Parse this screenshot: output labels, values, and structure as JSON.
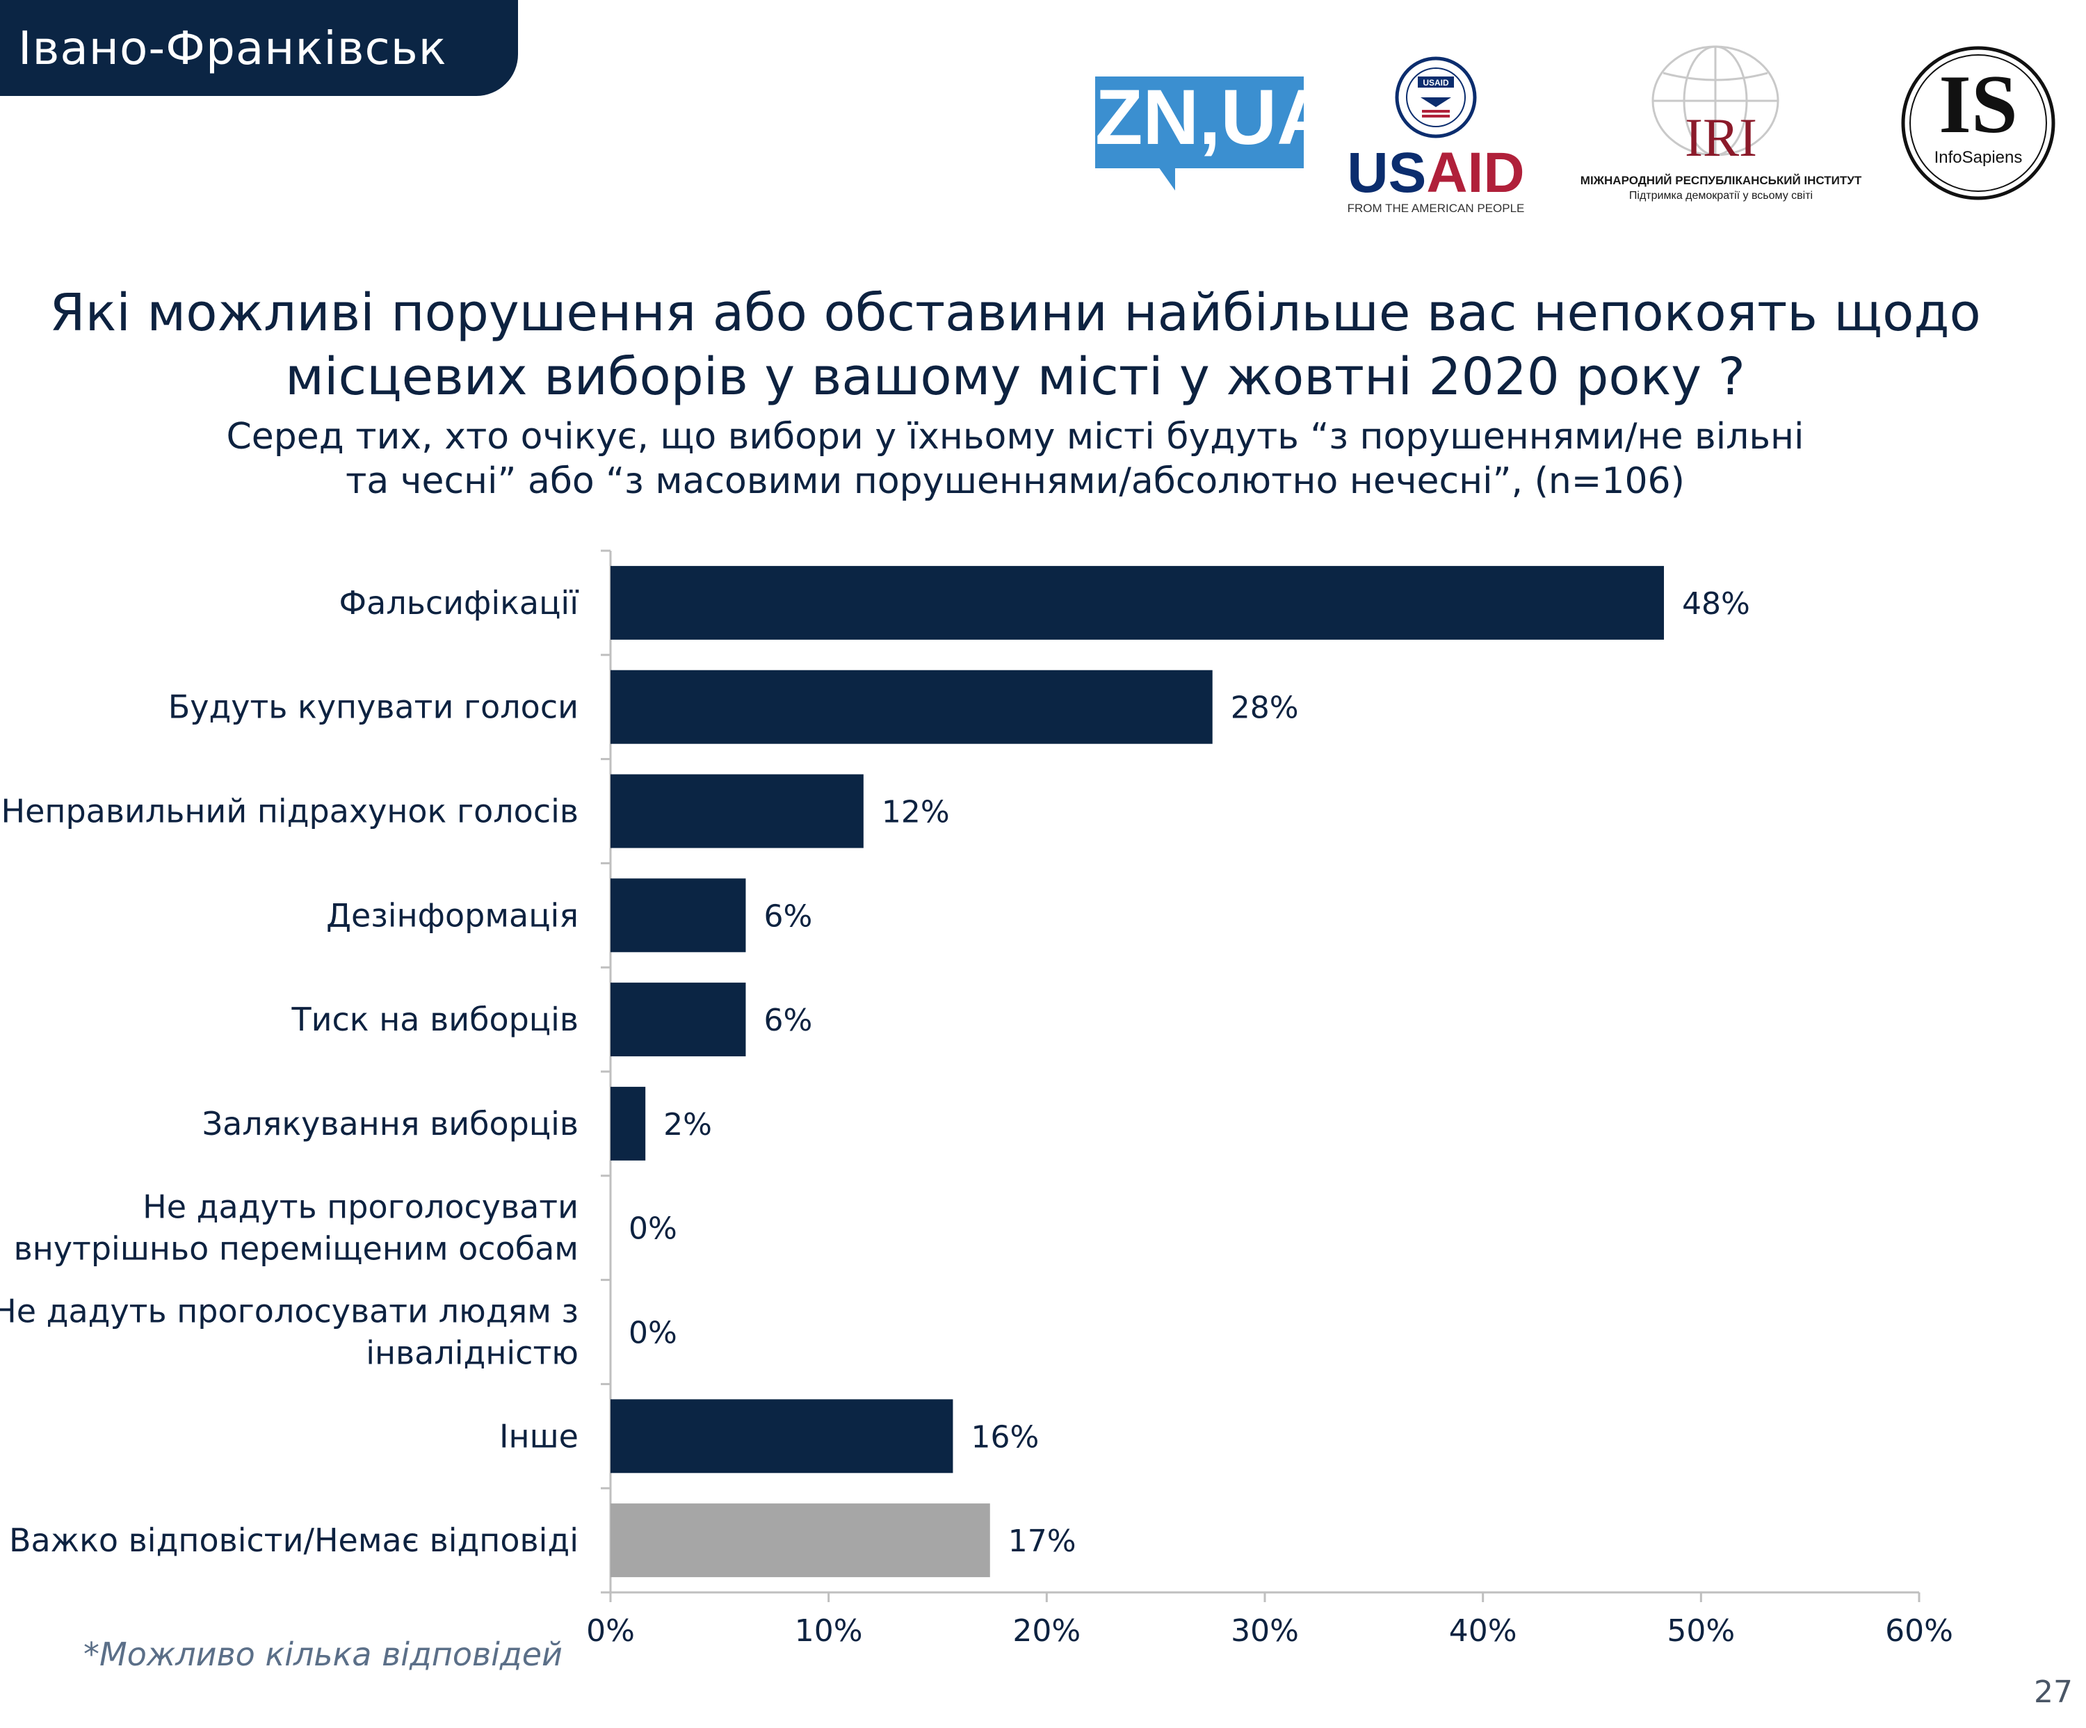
{
  "header": {
    "city": "Івано-Франківськ"
  },
  "logos": {
    "zn": "ZN,UA",
    "usaid": {
      "us": "US",
      "aid": "AID",
      "tagline": "FROM THE AMERICAN PEOPLE",
      "seal_text": "USAID"
    },
    "iri": {
      "word": "IRI",
      "line1": "МІЖНАРОДНИЙ РЕСПУБЛІКАНСЬКИЙ ІНСТИТУТ",
      "line2": "Підтримка демократії у всьому світі"
    },
    "infosapiens": {
      "word": "IS",
      "name": "InfoSapiens"
    }
  },
  "title": {
    "line1": "Які можливі порушення або обставини найбільше вас непокоять щодо",
    "line2": "місцевих виборів у вашому місті у жовтні 2020 року ?"
  },
  "subtitle": {
    "line1": "Серед тих, хто очікує, що вибори у їхньому місті будуть “з порушеннями/не вільні",
    "line2": "та чесні” або “з масовими порушеннями/абсолютно нечесні”, (n=106)"
  },
  "chart_data": {
    "type": "bar",
    "orientation": "horizontal",
    "categories": [
      [
        "Фальсифікації"
      ],
      [
        "Будуть купувати голоси"
      ],
      [
        "Неправильний підрахунок голосів"
      ],
      [
        "Дезінформація"
      ],
      [
        "Тиск на виборців"
      ],
      [
        "Залякування виборців"
      ],
      [
        "Не дадуть проголосувати",
        "внутрішньо переміщеним особам"
      ],
      [
        "Не дадуть проголосувати людям з",
        "інвалідністю"
      ],
      [
        "Інше"
      ],
      [
        "Важко відповісти/Немає відповіді"
      ]
    ],
    "values": [
      48.3,
      27.6,
      11.6,
      6.2,
      6.2,
      1.6,
      0,
      0,
      15.7,
      17.4
    ],
    "value_labels": [
      "48%",
      "28%",
      "12%",
      "6%",
      "6%",
      "2%",
      "0%",
      "0%",
      "16%",
      "17%"
    ],
    "bar_colors": [
      "#0b2544",
      "#0b2544",
      "#0b2544",
      "#0b2544",
      "#0b2544",
      "#0b2544",
      "#0b2544",
      "#0b2544",
      "#0b2544",
      "#a6a6a6"
    ],
    "xlim": [
      0,
      60
    ],
    "xticks": [
      0,
      10,
      20,
      30,
      40,
      50,
      60
    ],
    "xtick_labels": [
      "0%",
      "10%",
      "20%",
      "30%",
      "40%",
      "50%",
      "60%"
    ],
    "grid": false,
    "legend": "none"
  },
  "footnote": "*Можливо кілька відповідей",
  "page_number": "27"
}
